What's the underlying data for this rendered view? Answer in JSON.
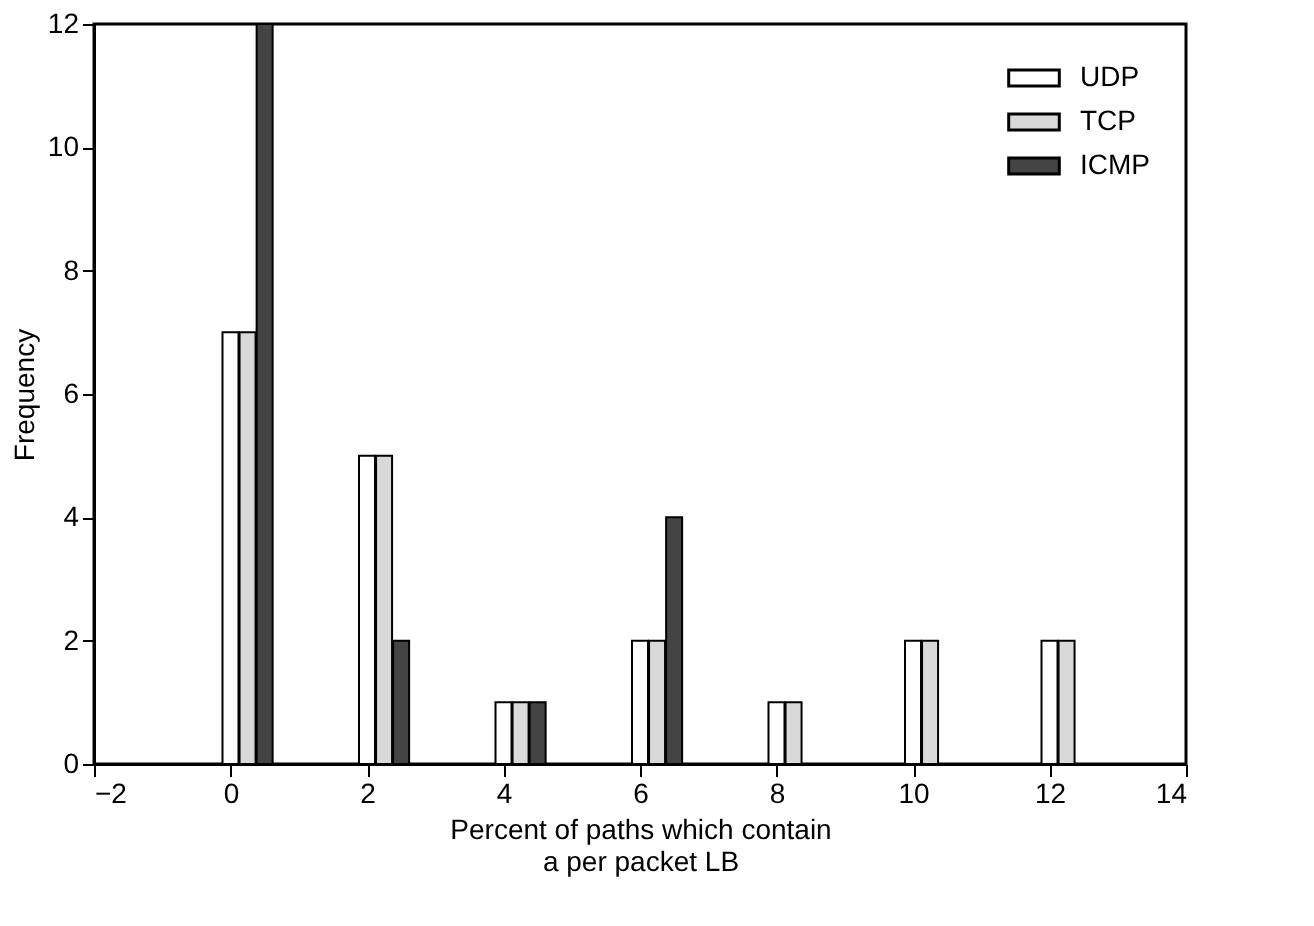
{
  "chart_data": {
    "type": "bar",
    "xlabel": "Percent of paths which contain\na per packet LB",
    "ylabel": "Frequency",
    "series": [
      {
        "name": "UDP",
        "color": "#ffffff",
        "x": [
          0,
          2,
          4,
          6,
          8,
          10,
          12
        ],
        "values": [
          7,
          5,
          1,
          2,
          1,
          2,
          2
        ]
      },
      {
        "name": "TCP",
        "color": "#d9d9d9",
        "x": [
          0.25,
          2.25,
          4.25,
          6.25,
          8.25,
          10.25,
          12.25
        ],
        "values": [
          7,
          5,
          1,
          2,
          1,
          2,
          2
        ]
      },
      {
        "name": "ICMP",
        "color": "#444444",
        "x": [
          0.5,
          2.5,
          4.5,
          6.5
        ],
        "values": [
          12,
          2,
          1,
          4
        ]
      }
    ],
    "xlim": [
      -2,
      14
    ],
    "xticks": [
      -2,
      0,
      2,
      4,
      6,
      8,
      10,
      12,
      14
    ],
    "ylim": [
      0,
      12
    ],
    "yticks": [
      0,
      2,
      4,
      6,
      8,
      10,
      12
    ],
    "grid": false,
    "legend": "top right"
  }
}
